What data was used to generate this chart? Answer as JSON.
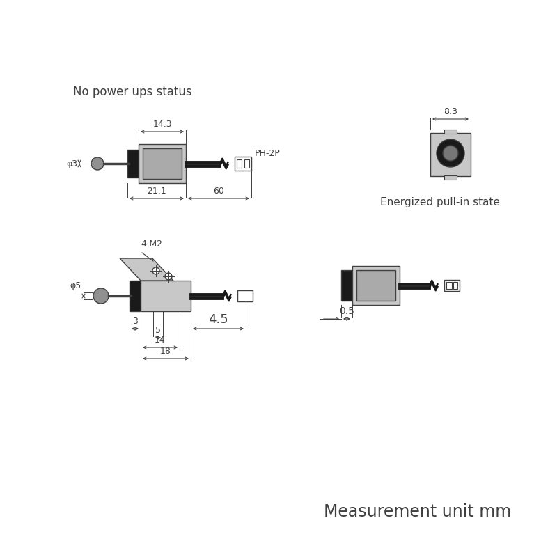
{
  "bg_color": "#ffffff",
  "lc": "#404040",
  "fl": "#c8c8c8",
  "fd": "#1a1a1a",
  "fm": "#909090",
  "title1": "No power ups status",
  "title2": "Energized pull-in state",
  "footer": "Measurement unit mm",
  "d_14_3": "14.3",
  "d_21_1": "21.1",
  "d_60": "60",
  "d_8_3": "8.3",
  "d_phi3": "φ3",
  "d_phi5": "φ5",
  "d_4M2": "4-M2",
  "d_4_5": "4.5",
  "d_5": "5",
  "d_14": "14",
  "d_18": "18",
  "d_3": "3",
  "d_0_5": "0.5",
  "d_ph2p": "PH-2P"
}
